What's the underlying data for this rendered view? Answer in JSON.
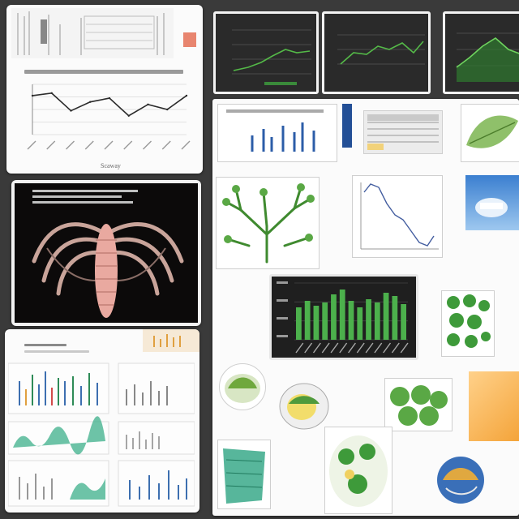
{
  "collage": {
    "title": "",
    "panels": [
      {
        "id": "line-chart-card",
        "kind": "line-chart"
      },
      {
        "id": "dark-monitor-1",
        "kind": "dark-line-chart"
      },
      {
        "id": "dark-monitor-2",
        "kind": "dark-line-chart"
      },
      {
        "id": "dark-monitor-3",
        "kind": "dark-line-chart"
      },
      {
        "id": "anatomy-image",
        "kind": "photo"
      },
      {
        "id": "dashboard-sheet",
        "kind": "document"
      },
      {
        "id": "main-board",
        "kind": "document"
      }
    ]
  },
  "line_chart_card": {
    "xlabel": "Scaway"
  },
  "chart_data": [
    {
      "type": "line",
      "title": "",
      "xlabel": "Scaway",
      "ylabel": "",
      "x": [
        1,
        2,
        3,
        4,
        5,
        6,
        7,
        8,
        9
      ],
      "series": [
        {
          "values": [
            62,
            66,
            38,
            52,
            58,
            30,
            48,
            40,
            62
          ]
        }
      ],
      "ylim": [
        0,
        80
      ],
      "grid": true
    },
    {
      "type": "bar",
      "title": "",
      "categories": [
        "1",
        "2",
        "3",
        "4",
        "5",
        "6",
        "7",
        "8",
        "9",
        "10",
        "11",
        "12",
        "13"
      ],
      "series": [
        {
          "values": [
            40,
            48,
            42,
            46,
            56,
            62,
            48,
            40,
            50,
            46,
            58,
            54,
            44
          ]
        }
      ],
      "grid": true
    }
  ],
  "colors": {
    "background": "#3a3a3a",
    "card": "#fbfbfb",
    "accent_green": "#4cb04c",
    "dark_screen": "#2a2a2a",
    "line_dark": "#2b2b2b"
  }
}
